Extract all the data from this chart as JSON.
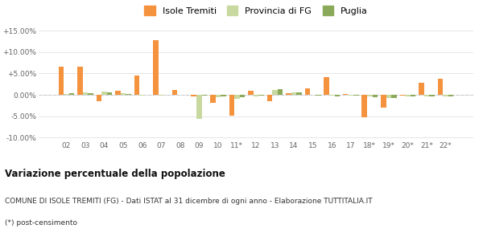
{
  "categories": [
    "02",
    "03",
    "04",
    "05",
    "06",
    "07",
    "08",
    "09",
    "10",
    "11*",
    "12",
    "13",
    "14",
    "15",
    "16",
    "17",
    "18*",
    "19*",
    "20*",
    "21*",
    "22*"
  ],
  "isole_tremiti": [
    6.5,
    6.5,
    -1.5,
    1.0,
    4.5,
    12.8,
    1.2,
    -0.3,
    -1.8,
    -4.8,
    1.0,
    -1.5,
    0.3,
    1.5,
    4.2,
    0.1,
    -5.2,
    -3.0,
    -0.2,
    2.8,
    3.7
  ],
  "provincia_fg": [
    0.1,
    0.5,
    0.7,
    0.3,
    -0.1,
    -0.1,
    0.0,
    -5.7,
    -0.5,
    -1.0,
    -0.3,
    1.1,
    0.5,
    0.0,
    -0.2,
    -0.1,
    -0.4,
    -0.7,
    -0.3,
    -0.3,
    -0.4
  ],
  "puglia": [
    0.3,
    0.3,
    0.5,
    0.1,
    0.0,
    0.0,
    0.0,
    -0.2,
    -0.3,
    -0.5,
    -0.1,
    1.3,
    0.6,
    -0.1,
    -0.4,
    -0.2,
    -0.5,
    -0.8,
    -0.3,
    -0.4,
    -0.4
  ],
  "color_isole": "#f5923e",
  "color_provincia": "#c8d9a0",
  "color_puglia": "#8aaa5a",
  "bg_color": "#ffffff",
  "grid_color": "#e0e0e0",
  "zero_line_color": "#cccccc",
  "ylim_min": -10.5,
  "ylim_max": 16.5,
  "yticks": [
    -10.0,
    -5.0,
    0.0,
    5.0,
    10.0,
    15.0
  ],
  "ytick_labels": [
    "-10.00%",
    "-5.00%",
    "0.00%",
    "+5.00%",
    "+10.00%",
    "+15.00%"
  ],
  "title_main": "Variazione percentuale della popolazione",
  "title_sub1": "COMUNE DI ISOLE TREMITI (FG) - Dati ISTAT al 31 dicembre di ogni anno - Elaborazione TUTTITALIA.IT",
  "title_sub2": "(*) post-censimento",
  "legend_labels": [
    "Isole Tremiti",
    "Provincia di FG",
    "Puglia"
  ],
  "bar_width": 0.28
}
